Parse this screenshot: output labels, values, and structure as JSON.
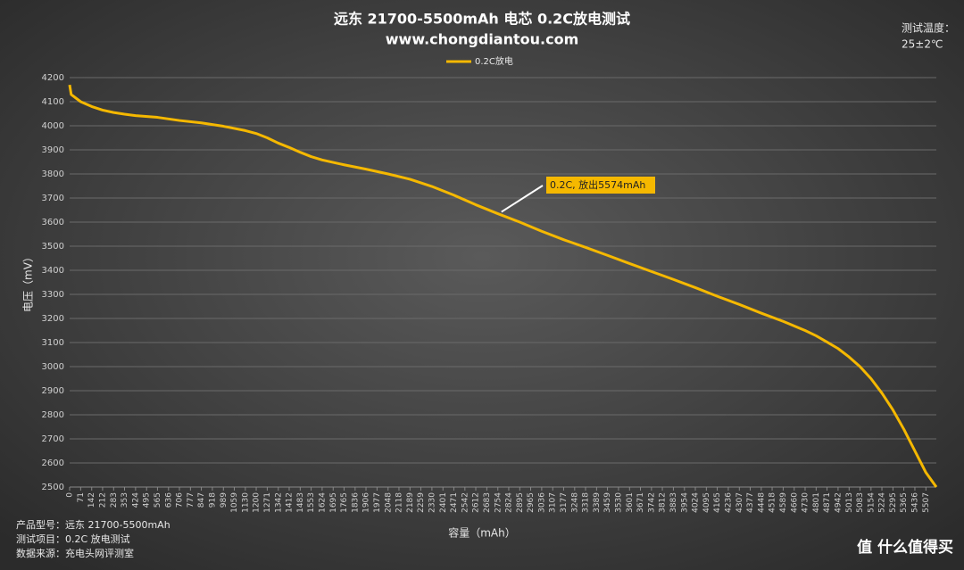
{
  "chart_data": {
    "type": "line",
    "title": "远东 21700-5500mAh 电芯  0.2C放电测试",
    "subtitle": "www.chongdiantou.com",
    "corner_note": [
      "测试温度：",
      "25±2℃"
    ],
    "footer": [
      "产品型号：远东 21700-5500mAh",
      "测试项目：0.2C 放电测试",
      "数据来源：充电头网评测室"
    ],
    "watermark": "值 什么值得买",
    "y_label": "电压（mV）",
    "x_label": "容量（mAh）",
    "annotation": "0.2C, 放出5574mAh",
    "legend": "top",
    "grid": true,
    "x": [
      0,
      10,
      71,
      142,
      212,
      283,
      353,
      424,
      565,
      706,
      847,
      989,
      1130,
      1200,
      1271,
      1342,
      1412,
      1483,
      1553,
      1624,
      1765,
      1906,
      2048,
      2189,
      2330,
      2471,
      2612,
      2754,
      2895,
      3036,
      3177,
      3318,
      3459,
      3601,
      3742,
      3883,
      4024,
      4165,
      4307,
      4448,
      4589,
      4730,
      4801,
      4871,
      4942,
      5013,
      5083,
      5154,
      5224,
      5295,
      5365,
      5436,
      5507,
      5574
    ],
    "series": [
      {
        "name": "0.2C放电",
        "color": "#f5b800",
        "values": [
          4170,
          4130,
          4100,
          4080,
          4065,
          4055,
          4048,
          4042,
          4035,
          4022,
          4012,
          3998,
          3980,
          3968,
          3950,
          3928,
          3910,
          3890,
          3872,
          3858,
          3838,
          3820,
          3800,
          3778,
          3748,
          3712,
          3672,
          3635,
          3600,
          3562,
          3527,
          3495,
          3462,
          3428,
          3395,
          3362,
          3328,
          3292,
          3258,
          3222,
          3188,
          3150,
          3128,
          3102,
          3075,
          3040,
          3000,
          2950,
          2890,
          2820,
          2740,
          2650,
          2560,
          2500
        ]
      }
    ],
    "xlim": [
      0,
      5574
    ],
    "xticks": [
      0,
      71,
      142,
      212,
      283,
      353,
      424,
      495,
      565,
      636,
      706,
      777,
      847,
      918,
      989,
      1059,
      1130,
      1200,
      1271,
      1342,
      1412,
      1483,
      1553,
      1624,
      1695,
      1765,
      1836,
      1906,
      1977,
      2048,
      2118,
      2189,
      2259,
      2330,
      2401,
      2471,
      2542,
      2612,
      2683,
      2754,
      2824,
      2895,
      2965,
      3036,
      3107,
      3177,
      3248,
      3318,
      3389,
      3459,
      3530,
      3601,
      3671,
      3742,
      3812,
      3883,
      3954,
      4024,
      4095,
      4165,
      4236,
      4307,
      4377,
      4448,
      4518,
      4589,
      4660,
      4730,
      4801,
      4871,
      4942,
      5013,
      5083,
      5154,
      5224,
      5295,
      5365,
      5436,
      5507
    ],
    "ylim": [
      2500,
      4200
    ],
    "yticks": [
      2500,
      2600,
      2700,
      2800,
      2900,
      3000,
      3100,
      3200,
      3300,
      3400,
      3500,
      3600,
      3700,
      3800,
      3900,
      4000,
      4100,
      4200
    ]
  }
}
